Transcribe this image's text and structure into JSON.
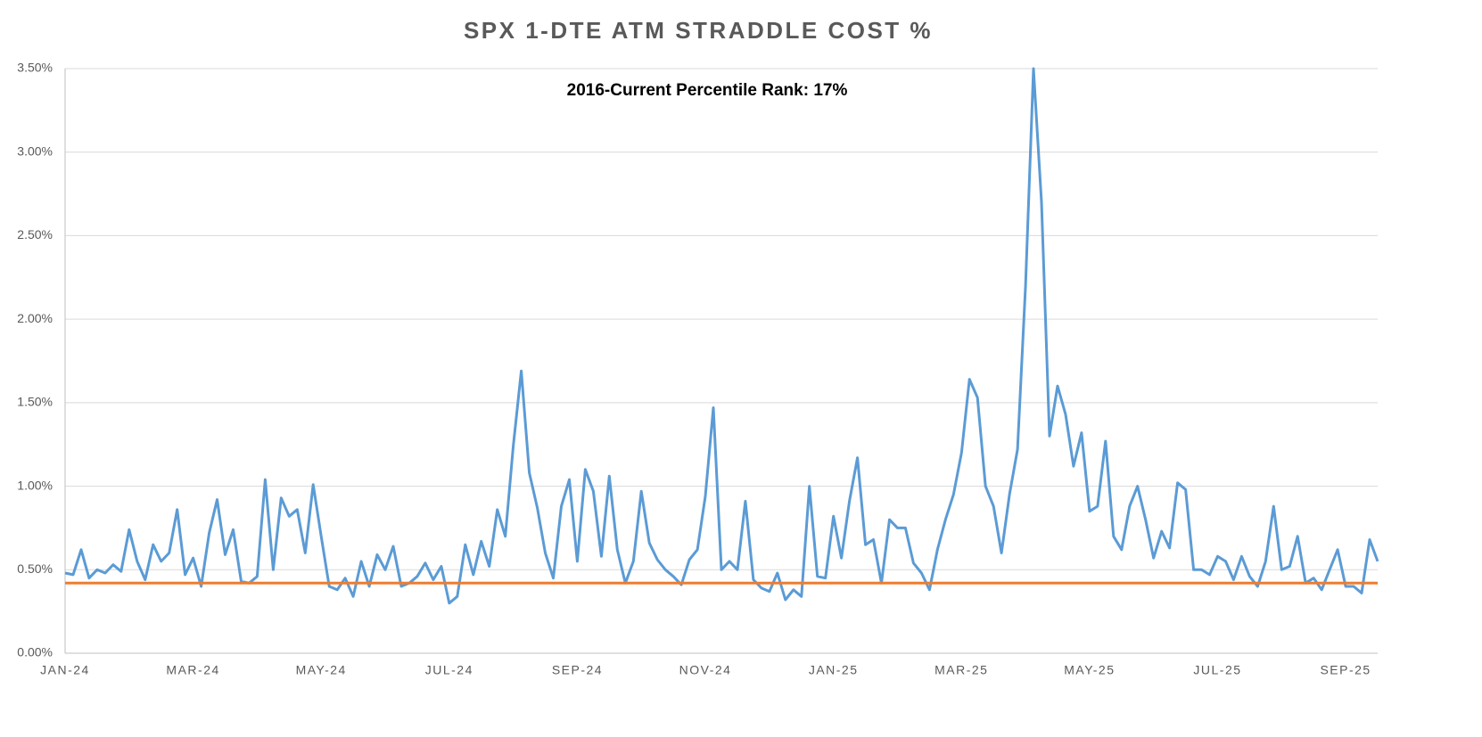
{
  "chart_data": {
    "type": "line",
    "title": "SPX 1-DTE ATM STRADDLE COST %",
    "annotation": "2016-Current Percentile Rank: 17%",
    "categories": [
      "JAN-24",
      null,
      null,
      null,
      null,
      null,
      null,
      null,
      null,
      null,
      null,
      null,
      null,
      null,
      null,
      null,
      "MAR-24",
      null,
      null,
      null,
      null,
      null,
      null,
      null,
      null,
      null,
      null,
      null,
      null,
      null,
      null,
      null,
      "MAY-24",
      null,
      null,
      null,
      null,
      null,
      null,
      null,
      null,
      null,
      null,
      null,
      null,
      null,
      null,
      null,
      "JUL-24",
      null,
      null,
      null,
      null,
      null,
      null,
      null,
      null,
      null,
      null,
      null,
      null,
      null,
      null,
      null,
      "SEP-24",
      null,
      null,
      null,
      null,
      null,
      null,
      null,
      null,
      null,
      null,
      null,
      null,
      null,
      null,
      null,
      "NOV-24",
      null,
      null,
      null,
      null,
      null,
      null,
      null,
      null,
      null,
      null,
      null,
      null,
      null,
      null,
      null,
      "JAN-25",
      null,
      null,
      null,
      null,
      null,
      null,
      null,
      null,
      null,
      null,
      null,
      null,
      null,
      null,
      null,
      "MAR-25",
      null,
      null,
      null,
      null,
      null,
      null,
      null,
      null,
      null,
      null,
      null,
      null,
      null,
      null,
      null,
      "MAY-25",
      null,
      null,
      null,
      null,
      null,
      null,
      null,
      null,
      null,
      null,
      null,
      null,
      null,
      null,
      null,
      "JUL-25",
      null,
      null,
      null,
      null,
      null,
      null,
      null,
      null,
      null,
      null,
      null,
      null,
      null,
      null,
      null,
      "SEP-25",
      null,
      null,
      null,
      null
    ],
    "series": [
      {
        "color": "#5b9bd5",
        "values": [
          0.48,
          0.47,
          0.62,
          0.45,
          0.5,
          0.48,
          0.53,
          0.49,
          0.74,
          0.55,
          0.44,
          0.65,
          0.55,
          0.6,
          0.86,
          0.47,
          0.57,
          0.4,
          0.72,
          0.92,
          0.59,
          0.74,
          0.43,
          0.42,
          0.46,
          1.04,
          0.5,
          0.93,
          0.82,
          0.86,
          0.6,
          1.01,
          0.7,
          0.4,
          0.38,
          0.45,
          0.34,
          0.55,
          0.4,
          0.59,
          0.5,
          0.64,
          0.4,
          0.42,
          0.46,
          0.54,
          0.44,
          0.52,
          0.3,
          0.34,
          0.65,
          0.47,
          0.67,
          0.52,
          0.86,
          0.7,
          1.24,
          1.69,
          1.08,
          0.87,
          0.6,
          0.45,
          0.88,
          1.04,
          0.55,
          1.1,
          0.97,
          0.58,
          1.06,
          0.62,
          0.42,
          0.55,
          0.97,
          0.66,
          0.56,
          0.5,
          0.46,
          0.41,
          0.56,
          0.62,
          0.94,
          1.47,
          0.5,
          0.55,
          0.5,
          0.91,
          0.44,
          0.39,
          0.37,
          0.48,
          0.32,
          0.38,
          0.34,
          1.0,
          0.46,
          0.45,
          0.82,
          0.57,
          0.91,
          1.17,
          0.65,
          0.68,
          0.42,
          0.8,
          0.75,
          0.75,
          0.54,
          0.48,
          0.38,
          0.62,
          0.8,
          0.95,
          1.2,
          1.64,
          1.53,
          1.0,
          0.88,
          0.6,
          0.95,
          1.22,
          2.2,
          3.5,
          2.7,
          1.3,
          1.6,
          1.43,
          1.12,
          1.32,
          0.85,
          0.88,
          1.27,
          0.7,
          0.62,
          0.88,
          1.0,
          0.8,
          0.57,
          0.73,
          0.63,
          1.02,
          0.98,
          0.5,
          0.5,
          0.47,
          0.58,
          0.55,
          0.44,
          0.58,
          0.46,
          0.4,
          0.55,
          0.88,
          0.5,
          0.52,
          0.7,
          0.42,
          0.45,
          0.38,
          0.5,
          0.62,
          0.4,
          0.4,
          0.36,
          0.68,
          0.55
        ]
      }
    ],
    "reference_line": {
      "value": 0.42,
      "color": "#ed7d31"
    },
    "ylim": [
      0,
      3.5
    ],
    "yticks": [
      {
        "value": 0,
        "label": "0.00%"
      },
      {
        "value": 0.5,
        "label": "0.50%"
      },
      {
        "value": 1,
        "label": "1.00%"
      },
      {
        "value": 1.5,
        "label": "1.50%"
      },
      {
        "value": 2,
        "label": "2.00%"
      },
      {
        "value": 2.5,
        "label": "2.50%"
      },
      {
        "value": 3,
        "label": "3.00%"
      },
      {
        "value": 3.5,
        "label": "3.50%"
      }
    ],
    "grid": true
  }
}
